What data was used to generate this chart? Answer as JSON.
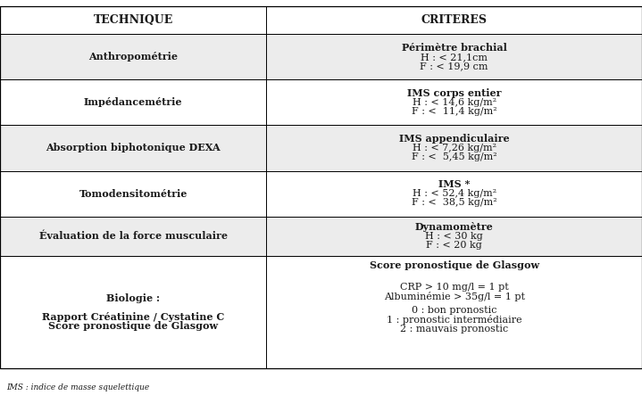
{
  "footer": "IMS : indice de masse squelettique",
  "col1_header": "TECHNIQUE",
  "col2_header": "CRITERES",
  "rows": [
    {
      "col1": "Anthropométrie",
      "col2_title": "Périmètre brachial",
      "col2_lines": [
        "H : < 21,1cm",
        "F : < 19,9 cm"
      ],
      "bg": "#ececec"
    },
    {
      "col1": "Impédancemétrie",
      "col2_title": "IMS corps entier",
      "col2_lines": [
        "H : < 14,6 kg/m²",
        "F : <  11,4 kg/m²"
      ],
      "bg": "#ffffff"
    },
    {
      "col1": "Absorption biphotonique DEXA",
      "col2_title": "IMS appendiculaire",
      "col2_lines": [
        "H : < 7,26 kg/m²",
        "F : <  5,45 kg/m²"
      ],
      "bg": "#ececec"
    },
    {
      "col1": "Tomodensitométrie",
      "col2_title": "IMS *",
      "col2_lines": [
        "H : < 52,4 kg/m²",
        "F : <  38,5 kg/m²"
      ],
      "bg": "#ffffff"
    },
    {
      "col1": "Évaluation de la force musculaire",
      "col2_title": "Dynamomètre",
      "col2_lines": [
        "H : < 30 kg",
        "F : < 20 kg"
      ],
      "bg": "#ececec"
    },
    {
      "col1_lines": [
        "Biologie :",
        "",
        "Rapport Créatinine / Cystatine C",
        "Score pronostique de Glasgow"
      ],
      "col1_bold_indices": [
        0,
        2,
        3
      ],
      "col2_title": "Score pronostique de Glasgow",
      "col2_lines": [
        "",
        "CRP > 10 mg/l = 1 pt",
        "Albuminémie > 35g/l = 1 pt",
        "",
        "0 : bon pronostic",
        "1 : pronostic intermédiaire",
        "2 : mauvais pronostic"
      ],
      "bg": "#ffffff"
    }
  ],
  "header_bg": "#ffffff",
  "border_color": "#000000",
  "text_color": "#1a1a1a",
  "font_size": 8.0,
  "col_split": 0.415,
  "fig_width": 7.19,
  "fig_height": 4.62,
  "dpi": 100
}
